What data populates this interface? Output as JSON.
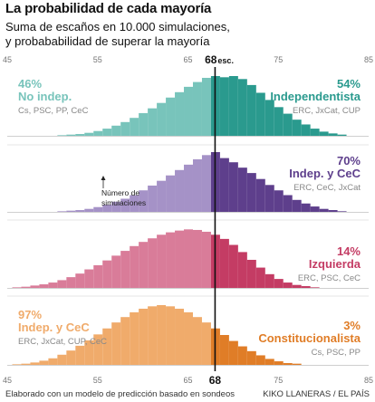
{
  "title": "La probabilidad de cada mayoría",
  "subtitle_line1": "Suma de escaños en 10.000 simulaciones,",
  "subtitle_line2": "y probababilidad de superar la mayoría",
  "footer_left": "Elaborado con un modelo de predicción basado en sondeos",
  "footer_right": "KIKO LLANERAS / EL PAÍS",
  "annotation": [
    "Número de",
    "simulaciones"
  ],
  "chart_data": {
    "type": "bar",
    "x_ticks_top": [
      "45",
      "55",
      "65",
      "75",
      "85"
    ],
    "x_ticks_bottom": [
      "45",
      "55",
      "65",
      "75",
      "85"
    ],
    "majority_label_top": "68",
    "majority_unit": "esc.",
    "majority_label_bottom": "68",
    "xlim": [
      45,
      85
    ],
    "majority": 68,
    "panels": [
      {
        "left": {
          "pct": "46%",
          "label": "No indep.",
          "parties": "Cs, PSC, PP, CeC",
          "color": "#78c4bb"
        },
        "right": {
          "pct": "54%",
          "label": "Independentista",
          "parties": "ERC, JxCat, CUP",
          "color": "#2a9a8e"
        },
        "start": 51,
        "values": [
          0.01,
          0.02,
          0.03,
          0.05,
          0.08,
          0.12,
          0.17,
          0.23,
          0.3,
          0.38,
          0.46,
          0.55,
          0.64,
          0.73,
          0.82,
          0.9,
          0.97,
          1.0,
          0.98,
          1.0,
          0.95,
          0.85,
          0.72,
          0.6,
          0.48,
          0.37,
          0.27,
          0.19,
          0.12,
          0.07,
          0.04,
          0.02
        ]
      },
      {
        "left": {
          "pct": "",
          "label": "",
          "parties": "",
          "color": "#a592c7"
        },
        "right": {
          "pct": "70%",
          "label": "Indep. y CeC",
          "parties": "ERC, CeC, JxCat",
          "color": "#5e3f8c"
        },
        "start": 51,
        "values": [
          0.01,
          0.02,
          0.03,
          0.05,
          0.08,
          0.12,
          0.17,
          0.22,
          0.28,
          0.36,
          0.44,
          0.52,
          0.61,
          0.7,
          0.79,
          0.88,
          0.95,
          1.0,
          0.9,
          0.83,
          0.74,
          0.65,
          0.55,
          0.45,
          0.36,
          0.28,
          0.2,
          0.14,
          0.09,
          0.05,
          0.03,
          0.01
        ]
      },
      {
        "left": {
          "pct": "",
          "label": "",
          "parties": "",
          "color": "#d97c99"
        },
        "right": {
          "pct": "14%",
          "label": "Izquierda",
          "parties": "ERC, PSC, CeC",
          "color": "#c43c64"
        },
        "start": 46,
        "values": [
          0.01,
          0.02,
          0.04,
          0.06,
          0.09,
          0.13,
          0.18,
          0.24,
          0.31,
          0.38,
          0.46,
          0.54,
          0.62,
          0.7,
          0.77,
          0.83,
          0.89,
          0.93,
          0.96,
          0.98,
          0.97,
          0.94,
          0.89,
          0.82,
          0.72,
          0.6,
          0.47,
          0.34,
          0.23,
          0.15,
          0.09,
          0.05,
          0.03,
          0.01
        ]
      },
      {
        "left": {
          "pct": "97%",
          "label": "Indep. y CeC",
          "parties": "ERC, JxCat, CUP, CeC",
          "color": "#f0ab6b"
        },
        "right": {
          "pct": "3%",
          "label": "Constitucionalista",
          "parties": "Cs, PSC, PP",
          "color": "#e07d27"
        },
        "start": 46,
        "values": [
          0.01,
          0.02,
          0.04,
          0.07,
          0.11,
          0.17,
          0.24,
          0.32,
          0.41,
          0.51,
          0.61,
          0.71,
          0.8,
          0.88,
          0.94,
          0.98,
          1.0,
          0.98,
          0.94,
          0.88,
          0.8,
          0.71,
          0.61,
          0.5,
          0.4,
          0.31,
          0.23,
          0.16,
          0.1,
          0.06,
          0.03,
          0.02
        ]
      }
    ]
  }
}
